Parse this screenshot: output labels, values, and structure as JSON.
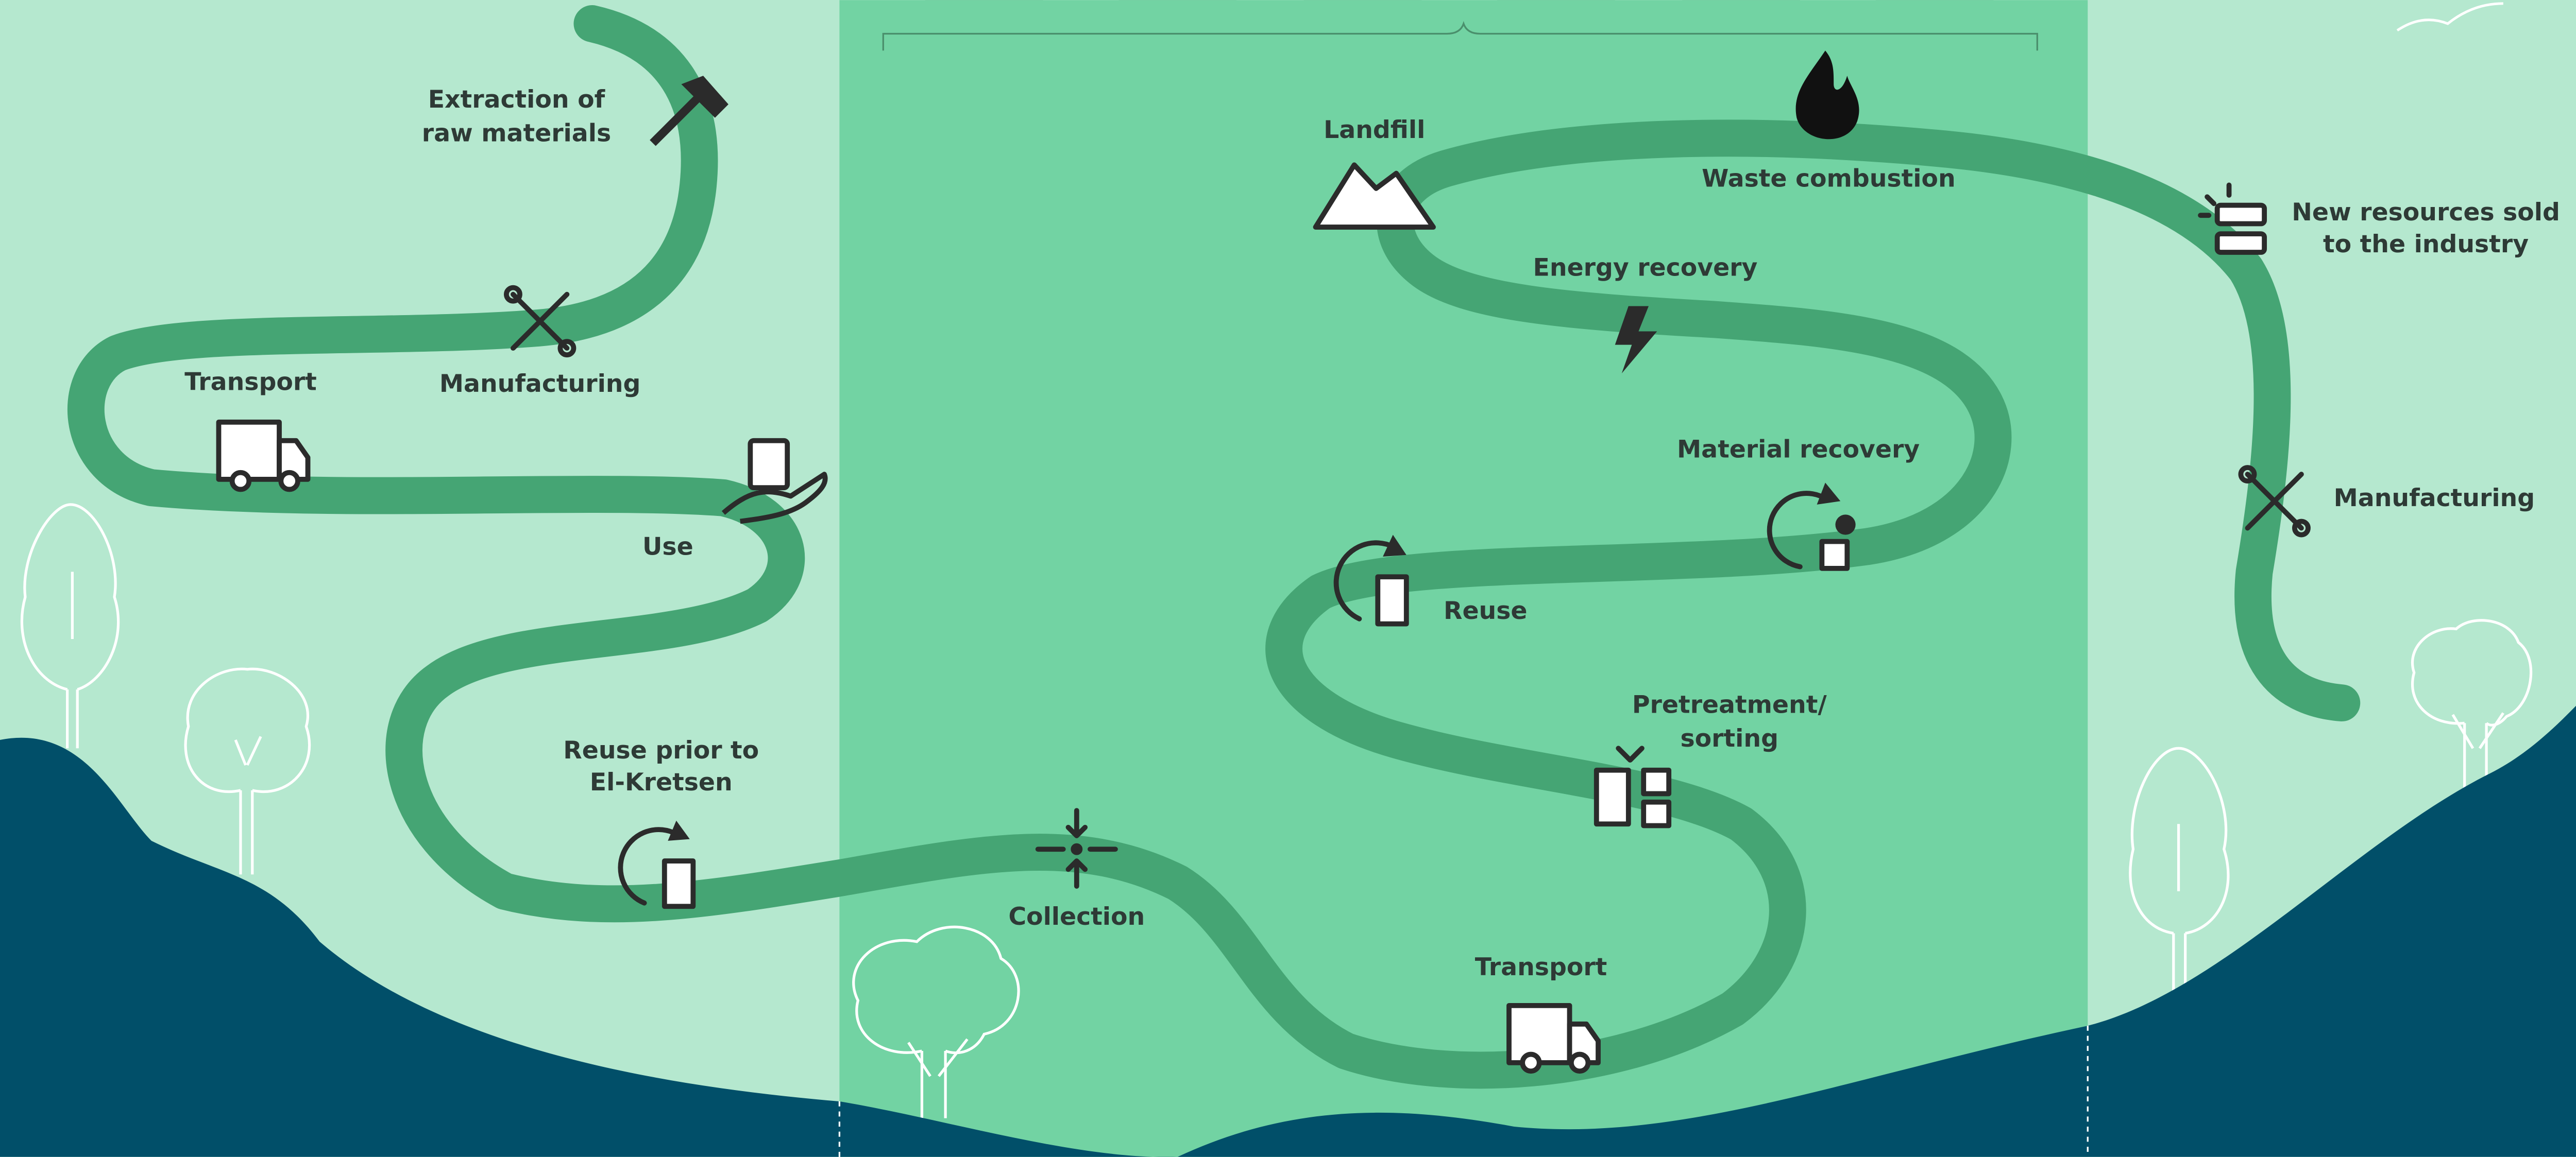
{
  "nodes": [
    {
      "lines": [
        "Extraction of",
        "raw materials"
      ]
    },
    {
      "lines": [
        "Manufacturing"
      ]
    },
    {
      "lines": [
        "Transport"
      ]
    },
    {
      "lines": [
        "Use"
      ]
    },
    {
      "lines": [
        "Reuse prior to",
        "El-Kretsen"
      ]
    },
    {
      "lines": [
        "Collection"
      ]
    },
    {
      "lines": [
        "Transport"
      ]
    },
    {
      "lines": [
        "Pretreatment/",
        "sorting"
      ]
    },
    {
      "lines": [
        "Reuse"
      ]
    },
    {
      "lines": [
        "Material recovery"
      ]
    },
    {
      "lines": [
        "Energy recovery"
      ]
    },
    {
      "lines": [
        "Landfill"
      ]
    },
    {
      "lines": [
        "Waste combustion"
      ]
    },
    {
      "lines": [
        "New resources sold",
        "to the industry"
      ]
    },
    {
      "lines": [
        "Manufacturing"
      ]
    }
  ]
}
